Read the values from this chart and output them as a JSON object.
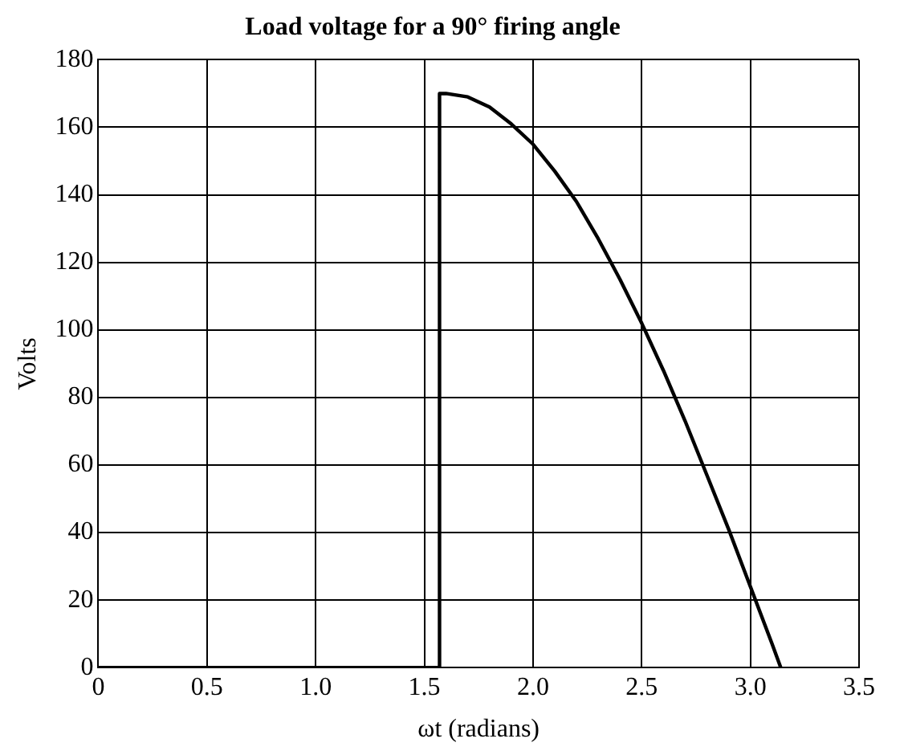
{
  "chart_data": {
    "type": "line",
    "title": "Load voltage for a 90° firing angle",
    "xlabel": "ωt (radians)",
    "ylabel": "Volts",
    "series": [
      {
        "color": "#000000",
        "x": [
          0,
          1.57,
          1.57,
          1.6,
          1.7,
          1.8,
          1.9,
          2.0,
          2.1,
          2.2,
          2.3,
          2.4,
          2.5,
          2.6,
          2.7,
          2.8,
          2.9,
          3.0,
          3.1,
          3.14
        ],
        "values": [
          0,
          0,
          170,
          170,
          169,
          166,
          161,
          155,
          147,
          138,
          127,
          115,
          102,
          88,
          73,
          57,
          41,
          24,
          7,
          0
        ]
      }
    ],
    "xlim": [
      0,
      3.5
    ],
    "xticks": [
      0,
      0.5,
      {
        "value": 1,
        "label": "1.0"
      },
      1.5,
      {
        "value": 2,
        "label": "2.0"
      },
      2.5,
      {
        "value": 3,
        "label": "3.0"
      },
      3.5
    ],
    "ylim": [
      0,
      180
    ],
    "yticks": [
      0,
      20,
      40,
      60,
      80,
      100,
      120,
      140,
      160,
      180
    ],
    "grid": true,
    "legend": false,
    "marker": "none",
    "line_style": "solid"
  }
}
